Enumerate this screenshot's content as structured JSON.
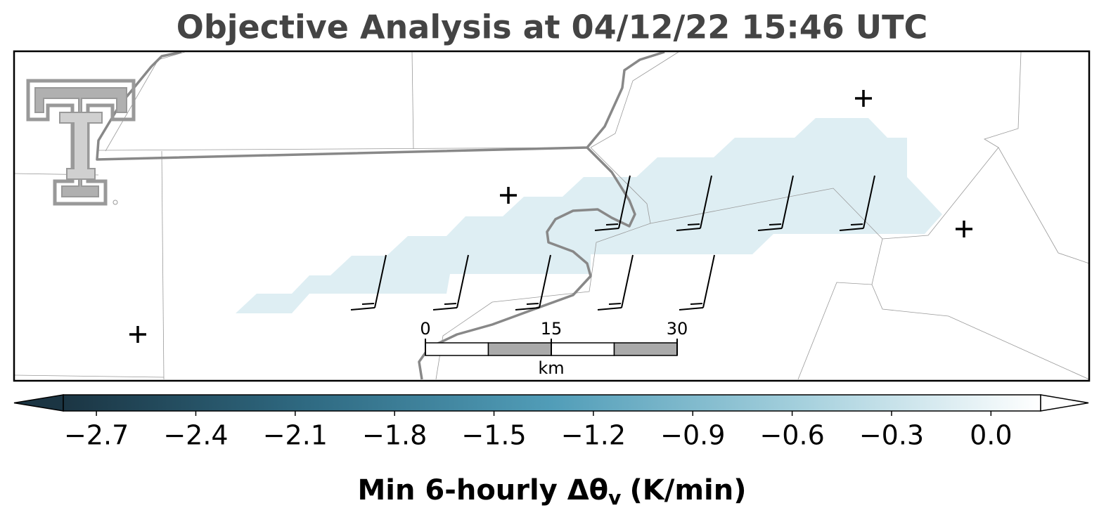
{
  "title": "Objective Analysis at 04/12/22 15:46 UTC",
  "colorbar": {
    "clim": [
      -2.8,
      0.15
    ],
    "ticks": [
      {
        "value": -2.7,
        "label": "−2.7"
      },
      {
        "value": -2.4,
        "label": "−2.4"
      },
      {
        "value": -2.1,
        "label": "−2.1"
      },
      {
        "value": -1.8,
        "label": "−1.8"
      },
      {
        "value": -1.5,
        "label": "−1.5"
      },
      {
        "value": -1.2,
        "label": "−1.2"
      },
      {
        "value": -0.9,
        "label": "−0.9"
      },
      {
        "value": -0.6,
        "label": "−0.6"
      },
      {
        "value": -0.3,
        "label": "−0.3"
      },
      {
        "value": 0,
        "label": "0.0"
      }
    ],
    "label": "Min 6-hourly Δθ",
    "label_sub": "v",
    "label_unit": "(K/min)"
  },
  "scale_bar": {
    "ticks": [
      0,
      15,
      30
    ],
    "unit": "km"
  }
}
